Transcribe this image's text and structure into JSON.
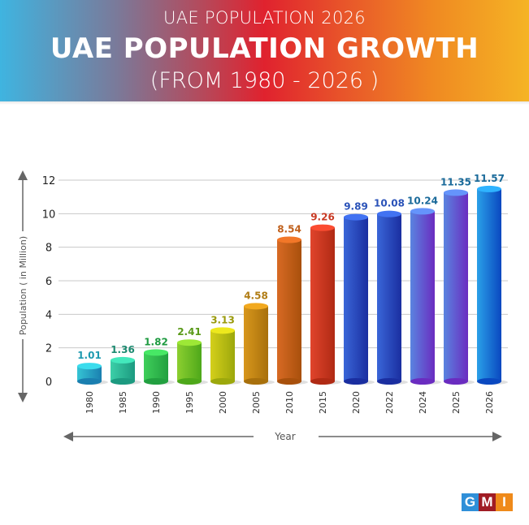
{
  "header": {
    "subtitle": "UAE POPULATION 2026",
    "title": "UAE POPULATION GROWTH",
    "range": "(FROM 1980 - 2026 )"
  },
  "logo": {
    "letters": [
      "G",
      "M",
      "I"
    ],
    "colors": [
      "#2f8fd8",
      "#a01c24",
      "#ef8a1a"
    ]
  },
  "chart_data": {
    "type": "bar",
    "title": "UAE POPULATION GROWTH",
    "subtitle": "(FROM 1980 - 2026 )",
    "xlabel": "Year",
    "ylabel": "Population ( in Million)",
    "ylim": [
      0,
      12
    ],
    "yticks": [
      0,
      2,
      4,
      6,
      8,
      10,
      12
    ],
    "grid": true,
    "categories": [
      "1980",
      "1985",
      "1990",
      "1995",
      "2000",
      "2005",
      "2010",
      "2015",
      "2020",
      "2022",
      "2024",
      "2025",
      "2026"
    ],
    "values": [
      1.01,
      1.36,
      1.82,
      2.41,
      3.13,
      4.58,
      8.54,
      9.26,
      9.89,
      10.08,
      10.24,
      11.35,
      11.57
    ],
    "labels": [
      "1.01",
      "1.36",
      "1.82",
      "2.41",
      "3.13",
      "4.58",
      "8.54",
      "9.26",
      "9.89",
      "10.08",
      "10.24",
      "11.35",
      "11.57"
    ],
    "bar_colors": [
      [
        "#35c4d4",
        "#1a7fb0"
      ],
      [
        "#3ccfa8",
        "#1c9a80"
      ],
      [
        "#3fcf5a",
        "#22a040"
      ],
      [
        "#8ccf30",
        "#4ea81a"
      ],
      [
        "#d4cf1a",
        "#9ca80c"
      ],
      [
        "#d8971c",
        "#a8700c"
      ],
      [
        "#d86a24",
        "#a8500c"
      ],
      [
        "#e0442c",
        "#b02a14"
      ],
      [
        "#3a66d8",
        "#1a2ea0"
      ],
      [
        "#3a66d8",
        "#1a2ea0"
      ],
      [
        "#5a84e0",
        "#6a2cc0"
      ],
      [
        "#5a84e0",
        "#6a2cc0"
      ],
      [
        "#2aa0e8",
        "#0a48c0"
      ]
    ],
    "label_colors": [
      "#1e9ab0",
      "#1c8a70",
      "#1e9a40",
      "#5a9a1a",
      "#9a9a0c",
      "#b07c14",
      "#c0601c",
      "#c83a24",
      "#2a52b8",
      "#2a52b8",
      "#1a6a9a",
      "#1a6a9a",
      "#1a6a9a"
    ]
  }
}
